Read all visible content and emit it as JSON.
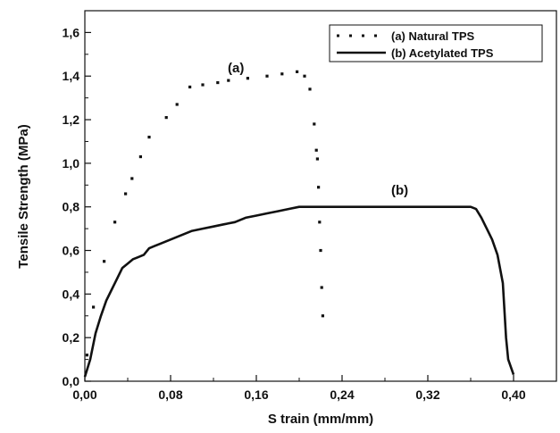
{
  "chart_data": {
    "type": "line",
    "xlabel": "S train  (mm/mm)",
    "ylabel": "Tensile Strength (MPa)",
    "xlim": [
      0.0,
      0.44
    ],
    "ylim": [
      0.0,
      1.7
    ],
    "x_ticks": [
      "0,00",
      "0,08",
      "0,16",
      "0,24",
      "0,32",
      "0,40"
    ],
    "y_ticks": [
      "0,0",
      "0,2",
      "0,4",
      "0,6",
      "0,8",
      "1,0",
      "1,2",
      "1,4",
      "1,6"
    ],
    "legend_position": "top-right",
    "grid": false,
    "series": [
      {
        "name": "(a) Natural TPS",
        "style": "dotted",
        "color": "#111111",
        "x": [
          0.002,
          0.008,
          0.018,
          0.028,
          0.038,
          0.044,
          0.052,
          0.06,
          0.076,
          0.086,
          0.098,
          0.11,
          0.124,
          0.134,
          0.152,
          0.17,
          0.184,
          0.198,
          0.205,
          0.21,
          0.214,
          0.216,
          0.217,
          0.218,
          0.219,
          0.22,
          0.221,
          0.222
        ],
        "y": [
          0.12,
          0.34,
          0.55,
          0.73,
          0.86,
          0.93,
          1.03,
          1.12,
          1.21,
          1.27,
          1.35,
          1.36,
          1.37,
          1.38,
          1.39,
          1.4,
          1.41,
          1.42,
          1.4,
          1.34,
          1.18,
          1.06,
          1.02,
          0.89,
          0.73,
          0.6,
          0.43,
          0.3
        ],
        "annotation": "(a)"
      },
      {
        "name": "(b) Acetylated TPS",
        "style": "solid",
        "color": "#111111",
        "x": [
          0.0,
          0.005,
          0.01,
          0.015,
          0.02,
          0.025,
          0.03,
          0.035,
          0.04,
          0.045,
          0.05,
          0.055,
          0.06,
          0.065,
          0.07,
          0.08,
          0.09,
          0.1,
          0.11,
          0.12,
          0.13,
          0.14,
          0.15,
          0.16,
          0.17,
          0.18,
          0.19,
          0.2,
          0.22,
          0.26,
          0.3,
          0.34,
          0.36,
          0.365,
          0.37,
          0.375,
          0.38,
          0.385,
          0.39,
          0.393,
          0.395,
          0.4
        ],
        "y": [
          0.02,
          0.1,
          0.22,
          0.3,
          0.37,
          0.42,
          0.47,
          0.52,
          0.54,
          0.56,
          0.57,
          0.58,
          0.61,
          0.62,
          0.63,
          0.65,
          0.67,
          0.69,
          0.7,
          0.71,
          0.72,
          0.73,
          0.75,
          0.76,
          0.77,
          0.78,
          0.79,
          0.8,
          0.8,
          0.8,
          0.8,
          0.8,
          0.8,
          0.79,
          0.75,
          0.7,
          0.65,
          0.58,
          0.45,
          0.2,
          0.1,
          0.03
        ],
        "annotation": "(b)"
      }
    ]
  }
}
